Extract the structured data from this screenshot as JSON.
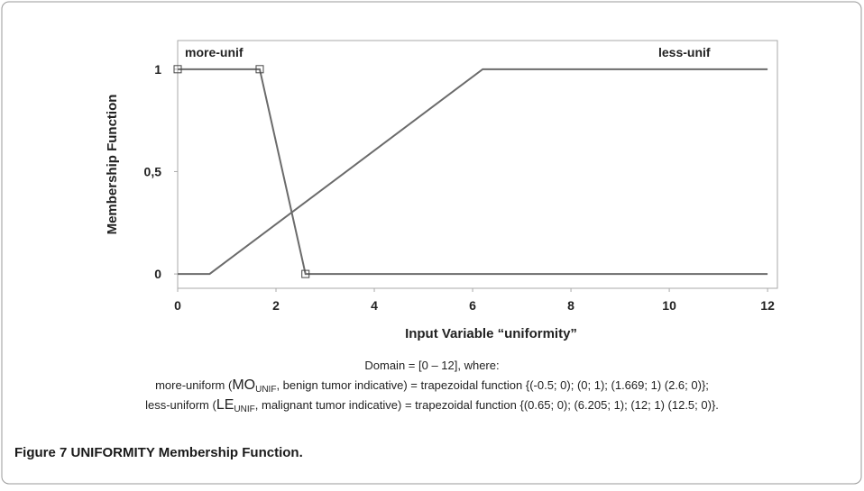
{
  "chart_data": {
    "type": "line",
    "xlabel": "Input Variable “uniformity”",
    "ylabel": "Membership Function",
    "xlim": [
      0,
      12.2
    ],
    "ylim": [
      -0.07,
      1.14
    ],
    "xticks": [
      0,
      2,
      4,
      6,
      8,
      10,
      12
    ],
    "yticks": [
      0,
      {
        "value": 0.5,
        "label": "0,5"
      },
      1
    ],
    "grid": false,
    "series": [
      {
        "name": "more-unif",
        "color": "#6b6b6b",
        "x": [
          0,
          1.669,
          2.6,
          12
        ],
        "values": [
          1,
          1,
          0,
          0
        ],
        "markers": [
          0,
          1,
          2
        ]
      },
      {
        "name": "less-unif",
        "color": "#6b6b6b",
        "x": [
          0,
          0.65,
          6.205,
          12
        ],
        "values": [
          0,
          0,
          1,
          1
        ],
        "markers": []
      }
    ]
  },
  "notes": [
    [
      "Domain = [0 – 12], where:"
    ],
    [
      "more-uniform (",
      "MO",
      "UNIF",
      ", benign tumor indicative) = trapezoidal function {(-0.5; 0); (0; 1); (1.669; 1) (2.6; 0)};"
    ],
    [
      "less-uniform (",
      "LE",
      "UNIF",
      ", malignant tumor indicative) = trapezoidal function {(0.65; 0); (6.205; 1); (12; 1) (12.5; 0)}."
    ]
  ],
  "figure_caption": "Figure 7 UNIFORMITY Membership Function."
}
